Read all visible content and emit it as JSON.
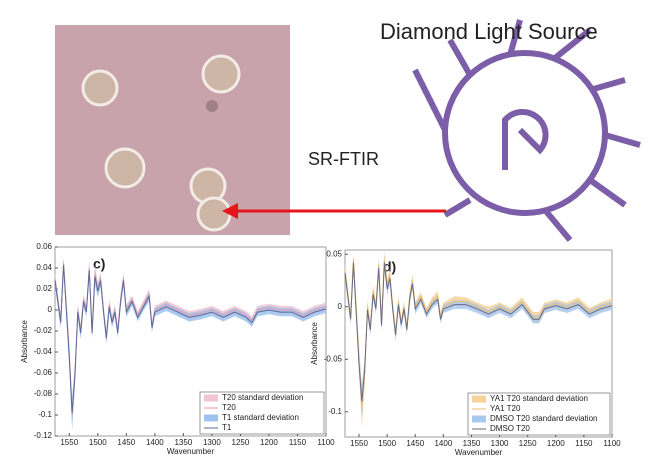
{
  "labels": {
    "logo": "Diamond Light Source",
    "technique": "SR-FTIR"
  },
  "chart_data": [
    {
      "type": "line",
      "title": "c)",
      "x_label": "Wavenumber",
      "y_label": "Absorbance",
      "x": [
        1575,
        1565,
        1560,
        1550,
        1545,
        1540,
        1535,
        1530,
        1525,
        1520,
        1515,
        1510,
        1505,
        1500,
        1495,
        1490,
        1485,
        1480,
        1475,
        1470,
        1465,
        1460,
        1455,
        1450,
        1440,
        1430,
        1420,
        1410,
        1405,
        1400,
        1380,
        1360,
        1340,
        1320,
        1300,
        1280,
        1260,
        1240,
        1230,
        1220,
        1200,
        1180,
        1160,
        1140,
        1120,
        1100
      ],
      "xlim": [
        1575,
        1100
      ],
      "xticks": [
        1550,
        1500,
        1450,
        1400,
        1350,
        1300,
        1250,
        1200,
        1150,
        1100
      ],
      "ylim": [
        -0.12,
        0.06
      ],
      "yticks": [
        -0.12,
        -0.1,
        -0.08,
        -0.06,
        -0.04,
        -0.02,
        0,
        0.02,
        0.04,
        0.06
      ],
      "series": [
        {
          "name": "T20 standard deviation",
          "color": "#f2c4d0",
          "values": [
            0.005,
            0.006,
            0.006,
            0.01,
            0.015,
            0.01,
            0.006,
            0.006,
            0.005,
            0.005,
            0.008,
            0.006,
            0.008,
            0.006,
            0.006,
            0.005,
            0.006,
            0.005,
            0.005,
            0.005,
            0.005,
            0.005,
            0.006,
            0.005,
            0.004,
            0.004,
            0.004,
            0.005,
            0.005,
            0.004,
            0.004,
            0.004,
            0.004,
            0.004,
            0.004,
            0.004,
            0.004,
            0.004,
            0.004,
            0.004,
            0.004,
            0.004,
            0.004,
            0.004,
            0.004,
            0.004
          ]
        },
        {
          "name": "T20",
          "color": "#e89aac",
          "values": [
            0.03,
            -0.01,
            0.045,
            -0.04,
            -0.1,
            -0.06,
            0,
            -0.02,
            0.01,
            0,
            0.04,
            -0.02,
            0.035,
            0.02,
            0.03,
            0,
            -0.025,
            0.005,
            -0.01,
            0,
            -0.02,
            0.01,
            0.03,
            0,
            0.01,
            -0.005,
            0.005,
            0.015,
            -0.015,
            0,
            0.005,
            0,
            -0.005,
            -0.003,
            0,
            -0.005,
            0,
            -0.005,
            -0.01,
            0,
            0.002,
            0,
            0,
            -0.005,
            0,
            0.003
          ]
        },
        {
          "name": "T1 standard deviation",
          "color": "#9fc3ef",
          "values": [
            0.005,
            0.006,
            0.006,
            0.01,
            0.015,
            0.01,
            0.006,
            0.006,
            0.005,
            0.005,
            0.008,
            0.006,
            0.008,
            0.006,
            0.006,
            0.005,
            0.006,
            0.005,
            0.005,
            0.005,
            0.005,
            0.005,
            0.006,
            0.005,
            0.004,
            0.004,
            0.004,
            0.005,
            0.005,
            0.004,
            0.004,
            0.004,
            0.004,
            0.004,
            0.004,
            0.004,
            0.004,
            0.004,
            0.004,
            0.004,
            0.004,
            0.004,
            0.004,
            0.004,
            0.004,
            0.004
          ]
        },
        {
          "name": "T1",
          "color": "#5a6a9a",
          "values": [
            0.028,
            -0.012,
            0.043,
            -0.045,
            -0.098,
            -0.062,
            -0.002,
            -0.022,
            0.008,
            -0.002,
            0.038,
            -0.022,
            0.032,
            0.018,
            0.028,
            -0.002,
            -0.027,
            0.003,
            -0.012,
            -0.002,
            -0.022,
            0.008,
            0.028,
            -0.002,
            0.008,
            -0.007,
            0.003,
            0.013,
            -0.017,
            -0.002,
            0.003,
            -0.002,
            -0.007,
            -0.005,
            -0.002,
            -0.007,
            -0.002,
            -0.007,
            -0.012,
            -0.002,
            0,
            -0.002,
            -0.002,
            -0.007,
            -0.002,
            0.001
          ]
        }
      ],
      "legend": "lower right"
    },
    {
      "type": "line",
      "title": "d)",
      "x_label": "Wavenumber",
      "y_label": "Absorbance",
      "x": [
        1575,
        1565,
        1560,
        1550,
        1545,
        1540,
        1535,
        1530,
        1525,
        1520,
        1515,
        1510,
        1505,
        1500,
        1495,
        1490,
        1485,
        1480,
        1475,
        1470,
        1465,
        1460,
        1455,
        1450,
        1440,
        1430,
        1420,
        1410,
        1405,
        1400,
        1380,
        1360,
        1340,
        1320,
        1300,
        1280,
        1260,
        1240,
        1230,
        1220,
        1200,
        1180,
        1160,
        1140,
        1120,
        1100
      ],
      "xlim": [
        1575,
        1100
      ],
      "xticks": [
        1550,
        1500,
        1450,
        1400,
        1350,
        1300,
        1250,
        1200,
        1150,
        1100
      ],
      "ylim": [
        -0.124,
        0.054
      ],
      "yticks": [
        -0.1,
        -0.05,
        0,
        0.05
      ],
      "series": [
        {
          "name": "YA1 T20 standard deviation",
          "color": "#f5d29a",
          "values": [
            0.006,
            0.006,
            0.007,
            0.012,
            0.02,
            0.012,
            0.007,
            0.006,
            0.006,
            0.005,
            0.008,
            0.006,
            0.008,
            0.006,
            0.006,
            0.005,
            0.006,
            0.005,
            0.005,
            0.005,
            0.005,
            0.005,
            0.006,
            0.005,
            0.004,
            0.004,
            0.004,
            0.005,
            0.005,
            0.004,
            0.005,
            0.004,
            0.004,
            0.005,
            0.004,
            0.004,
            0.004,
            0.005,
            0.005,
            0.004,
            0.004,
            0.004,
            0.004,
            0.004,
            0.004,
            0.005
          ]
        },
        {
          "name": "YA1 T20",
          "color": "#f0bd6a",
          "values": [
            0.035,
            -0.01,
            0.045,
            -0.05,
            -0.095,
            -0.065,
            0,
            -0.02,
            0.015,
            0,
            0.04,
            -0.015,
            0.045,
            0.02,
            0.03,
            0,
            -0.025,
            0.005,
            -0.015,
            0,
            -0.02,
            0.01,
            0.025,
            0,
            0.01,
            -0.005,
            0.005,
            0.01,
            -0.01,
            0,
            0.005,
            0.005,
            0,
            -0.005,
            0,
            -0.005,
            0.005,
            -0.01,
            -0.01,
            0,
            0.003,
            0,
            0.005,
            -0.005,
            0,
            0.003
          ]
        },
        {
          "name": "DMSO T20 standard deviation",
          "color": "#a8c8f0",
          "values": [
            0.005,
            0.005,
            0.006,
            0.01,
            0.015,
            0.01,
            0.006,
            0.006,
            0.005,
            0.005,
            0.007,
            0.006,
            0.007,
            0.006,
            0.006,
            0.005,
            0.006,
            0.005,
            0.005,
            0.005,
            0.005,
            0.005,
            0.005,
            0.005,
            0.004,
            0.004,
            0.004,
            0.004,
            0.004,
            0.004,
            0.004,
            0.004,
            0.004,
            0.004,
            0.004,
            0.004,
            0.004,
            0.004,
            0.004,
            0.004,
            0.004,
            0.004,
            0.004,
            0.004,
            0.004,
            0.004
          ]
        },
        {
          "name": "DMSO T20",
          "color": "#6a6a80",
          "values": [
            0.032,
            -0.012,
            0.042,
            -0.055,
            -0.09,
            -0.06,
            -0.003,
            -0.022,
            0.012,
            -0.002,
            0.037,
            -0.018,
            0.042,
            0.017,
            0.027,
            -0.003,
            -0.027,
            0.002,
            -0.017,
            -0.002,
            -0.022,
            0.007,
            0.022,
            -0.002,
            0.007,
            -0.007,
            0.002,
            0.007,
            -0.012,
            -0.002,
            0.002,
            0.002,
            -0.002,
            -0.007,
            -0.002,
            -0.007,
            0.002,
            -0.012,
            -0.012,
            -0.002,
            0.001,
            -0.002,
            0.002,
            -0.007,
            -0.002,
            0.001
          ]
        }
      ],
      "legend": "lower right"
    }
  ]
}
